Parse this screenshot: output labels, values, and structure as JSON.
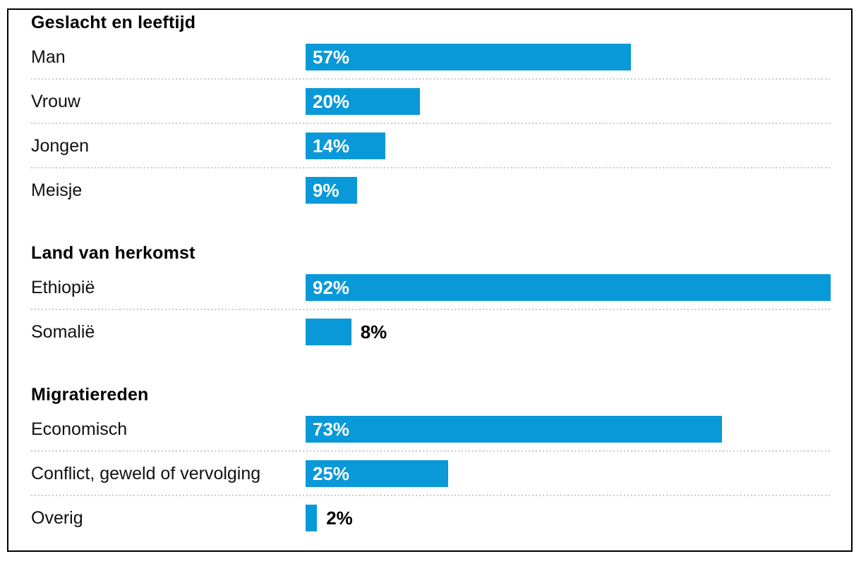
{
  "chart_data": {
    "type": "bar",
    "orientation": "horizontal",
    "unit": "%",
    "xlim": [
      0,
      100
    ],
    "grid": false,
    "legend": false,
    "bar_color": "#0999d8",
    "separator_color": "#c9c9c9",
    "value_label_inside_color": "#ffffff",
    "value_label_outside_color": "#000000",
    "sections": [
      {
        "title": "Geslacht en leeftijd",
        "rows": [
          {
            "label": "Man",
            "value": 57,
            "value_label": "57%",
            "label_inside": true
          },
          {
            "label": "Vrouw",
            "value": 20,
            "value_label": "20%",
            "label_inside": true
          },
          {
            "label": "Jongen",
            "value": 14,
            "value_label": "14%",
            "label_inside": true
          },
          {
            "label": "Meisje",
            "value": 9,
            "value_label": "9%",
            "label_inside": true
          }
        ]
      },
      {
        "title": "Land van herkomst",
        "rows": [
          {
            "label": "Ethiopië",
            "value": 92,
            "value_label": "92%",
            "label_inside": true
          },
          {
            "label": "Somalië",
            "value": 8,
            "value_label": "8%",
            "label_inside": false
          }
        ]
      },
      {
        "title": "Migratiereden",
        "rows": [
          {
            "label": "Economisch",
            "value": 73,
            "value_label": "73%",
            "label_inside": true
          },
          {
            "label": "Conflict, geweld of vervolging",
            "value": 25,
            "value_label": "25%",
            "label_inside": true
          },
          {
            "label": "Overig",
            "value": 2,
            "value_label": "2%",
            "label_inside": false
          }
        ]
      }
    ]
  }
}
